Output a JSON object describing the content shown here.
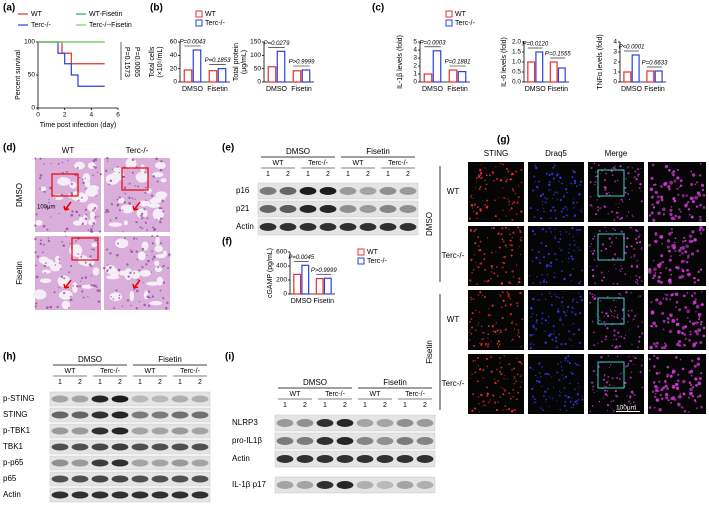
{
  "panel_labels": [
    "(a)",
    "(b)",
    "(c)",
    "(d)",
    "(e)",
    "(f)",
    "(g)",
    "(h)",
    "(i)"
  ],
  "chart_data": [
    {
      "type": "line",
      "ylabel": [
        "Percent survival"
      ],
      "xlabel": "Time post infection (day)",
      "xlim": [
        0,
        6
      ],
      "xticks": [
        0,
        2,
        4,
        6
      ],
      "ylim": [
        0,
        100
      ],
      "yticks": [
        0,
        50,
        100
      ],
      "series": [
        {
          "name": "WT",
          "color": "#e8302a",
          "x": [
            0,
            1.8,
            1.8,
            2.5,
            2.5,
            5
          ],
          "values": [
            100,
            100,
            83,
            83,
            67,
            67
          ]
        },
        {
          "name": "Terc-/-",
          "color": "#2b3fe0",
          "x": [
            0,
            1.5,
            1.5,
            2,
            2,
            2.5,
            2.5,
            3,
            3,
            5
          ],
          "values": [
            100,
            100,
            83,
            83,
            67,
            67,
            50,
            50,
            33,
            33
          ]
        },
        {
          "name": "WT-Fisetin",
          "color": "#22b14c",
          "x": [
            0,
            5
          ],
          "values": [
            100,
            100
          ]
        },
        {
          "name": "Terc-/--Fisetin",
          "color": "#7ccf6a",
          "x": [
            0,
            5
          ],
          "values": [
            100,
            100
          ]
        }
      ],
      "annotations": [
        "P=0.1573",
        "P=0.0065"
      ]
    },
    {
      "type": "bar",
      "ylabel": [
        "Total cells",
        "(×10⁵/mL)"
      ],
      "categories": [
        "DMSO",
        "Fisetin"
      ],
      "ylim": [
        0,
        60
      ],
      "yticks": [
        0,
        20,
        40,
        60
      ],
      "series": [
        {
          "name": "WT",
          "color": "#e8302a",
          "values": [
            18,
            17
          ]
        },
        {
          "name": "Terc-/-",
          "color": "#2b3fe0",
          "values": [
            48,
            20
          ]
        }
      ],
      "annotations": [
        "P=0.0043",
        "P=0.1853"
      ]
    },
    {
      "type": "bar",
      "ylabel": [
        "Total protein",
        "(μg/mL)"
      ],
      "categories": [
        "DMSO",
        "Fisetin"
      ],
      "ylim": [
        0,
        150
      ],
      "yticks": [
        0,
        50,
        100,
        150
      ],
      "series": [
        {
          "color": "#e8302a",
          "values": [
            57,
            42
          ]
        },
        {
          "color": "#2b3fe0",
          "values": [
            115,
            45
          ]
        }
      ],
      "annotations": [
        "P=0.0279",
        "P>0.9999"
      ]
    },
    {
      "type": "bar",
      "ylabel": [
        "IL-1β levels (fold)"
      ],
      "categories": [
        "DMSO",
        "Fisetin"
      ],
      "ylim": [
        0,
        5
      ],
      "yticks": [
        0,
        1,
        2,
        3,
        4,
        5
      ],
      "series": [
        {
          "name": "WT",
          "color": "#e8302a",
          "values": [
            1,
            1.5
          ]
        },
        {
          "name": "Terc-/-",
          "color": "#2b3fe0",
          "values": [
            3.9,
            1.3
          ]
        }
      ],
      "annotations": [
        "P=0.0003",
        "P=0.1881"
      ]
    },
    {
      "type": "bar",
      "ylabel": [
        "IL-6 levels (fold)"
      ],
      "categories": [
        "DMSO",
        "Fisetin"
      ],
      "ylim": [
        0,
        2
      ],
      "yticks": [
        {
          "value": 0,
          "label": "0.0"
        },
        0.5,
        {
          "value": 1,
          "label": "1.0"
        },
        1.5,
        {
          "value": 2,
          "label": "2.0"
        }
      ],
      "series": [
        {
          "color": "#e8302a",
          "values": [
            1,
            1
          ]
        },
        {
          "color": "#2b3fe0",
          "values": [
            1.5,
            0.7
          ]
        }
      ],
      "annotations": [
        "P=0.0120",
        "P=0.1555"
      ]
    },
    {
      "type": "bar",
      "ylabel": [
        "TNFα levels (fold)"
      ],
      "categories": [
        "DMSO",
        "Fisetin"
      ],
      "ylim": [
        0,
        4
      ],
      "yticks": [
        0,
        1,
        2,
        3,
        4
      ],
      "series": [
        {
          "color": "#e8302a",
          "values": [
            1,
            1.1
          ]
        },
        {
          "color": "#2b3fe0",
          "values": [
            2.7,
            1.1
          ]
        }
      ],
      "annotations": [
        "P<0.0001",
        "P=0.6633"
      ]
    },
    {
      "type": "bar",
      "ylabel": [
        "cGAMP (pg/mL)"
      ],
      "categories": [
        "DMSO",
        "Fisetin"
      ],
      "ylim": [
        0,
        600
      ],
      "yticks": [
        0,
        200,
        400,
        600
      ],
      "series": [
        {
          "name": "WT",
          "color": "#e8302a",
          "values": [
            280,
            220
          ]
        },
        {
          "name": "Terc-/-",
          "color": "#2b3fe0",
          "values": [
            410,
            225
          ]
        }
      ],
      "annotations": [
        "P=0.0045",
        "P>0.9999"
      ]
    }
  ],
  "histology": {
    "columns": [
      "WT",
      "Terc-/-"
    ],
    "rows": [
      "DMSO",
      "Fisetin"
    ],
    "scale": "100μm"
  },
  "blot_e": {
    "groups": [
      "DMSO",
      "Fisetin"
    ],
    "genotypes": [
      "WT",
      "Terc-/-",
      "WT",
      "Terc-/-"
    ],
    "lanes": [
      "1",
      "2",
      "1",
      "2",
      "1",
      "2",
      "1",
      "2"
    ],
    "rows": [
      "p16",
      "p21",
      "Actin"
    ]
  },
  "fluorescence": {
    "columns": [
      "STING",
      "Draq5",
      "Merge"
    ],
    "groups": [
      "DMSO",
      "Fisetin"
    ],
    "rows": [
      "WT",
      "Terc-/-",
      "WT",
      "Terc-/-"
    ],
    "scale": "100μm"
  },
  "blot_h": {
    "groups": [
      "DMSO",
      "Fisetin"
    ],
    "genotypes": [
      "WT",
      "Terc-/-",
      "WT",
      "Terc-/-"
    ],
    "lanes": [
      "1",
      "2",
      "1",
      "2",
      "1",
      "2",
      "1",
      "2"
    ],
    "rows": [
      "p-STING",
      "STING",
      "p-TBK1",
      "TBK1",
      "p-p65",
      "p65",
      "Actin"
    ]
  },
  "blot_i": {
    "groups": [
      "DMSO",
      "Fisetin"
    ],
    "genotypes": [
      "WT",
      "Terc-/-",
      "WT",
      "Terc-/-"
    ],
    "lanes": [
      "1",
      "2",
      "1",
      "2",
      "1",
      "2",
      "1",
      "2"
    ],
    "rows": [
      "NLRP3",
      "pro-IL1β",
      "Actin",
      "IL-1β p17"
    ]
  }
}
